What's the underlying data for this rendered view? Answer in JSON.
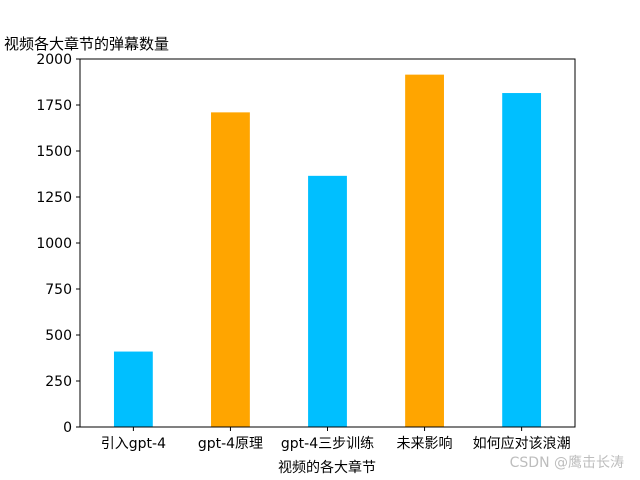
{
  "chart_data": {
    "type": "bar",
    "title": "视频各大章节的弹幕数量",
    "xlabel": "视频的各大章节",
    "ylabel": "",
    "categories": [
      "引入gpt-4",
      "gpt-4原理",
      "gpt-4三步训练",
      "未来影响",
      "如何应对该浪潮"
    ],
    "values": [
      410,
      1710,
      1365,
      1915,
      1815
    ],
    "bar_colors": [
      "#00BFFF",
      "#FFA500",
      "#00BFFF",
      "#FFA500",
      "#00BFFF"
    ],
    "ylim": [
      0,
      2000
    ],
    "yticks": [
      0,
      250,
      500,
      750,
      1000,
      1250,
      1500,
      1750,
      2000
    ],
    "grid": false,
    "legend": "none"
  },
  "watermark": "CSDN @鹰击长涛"
}
